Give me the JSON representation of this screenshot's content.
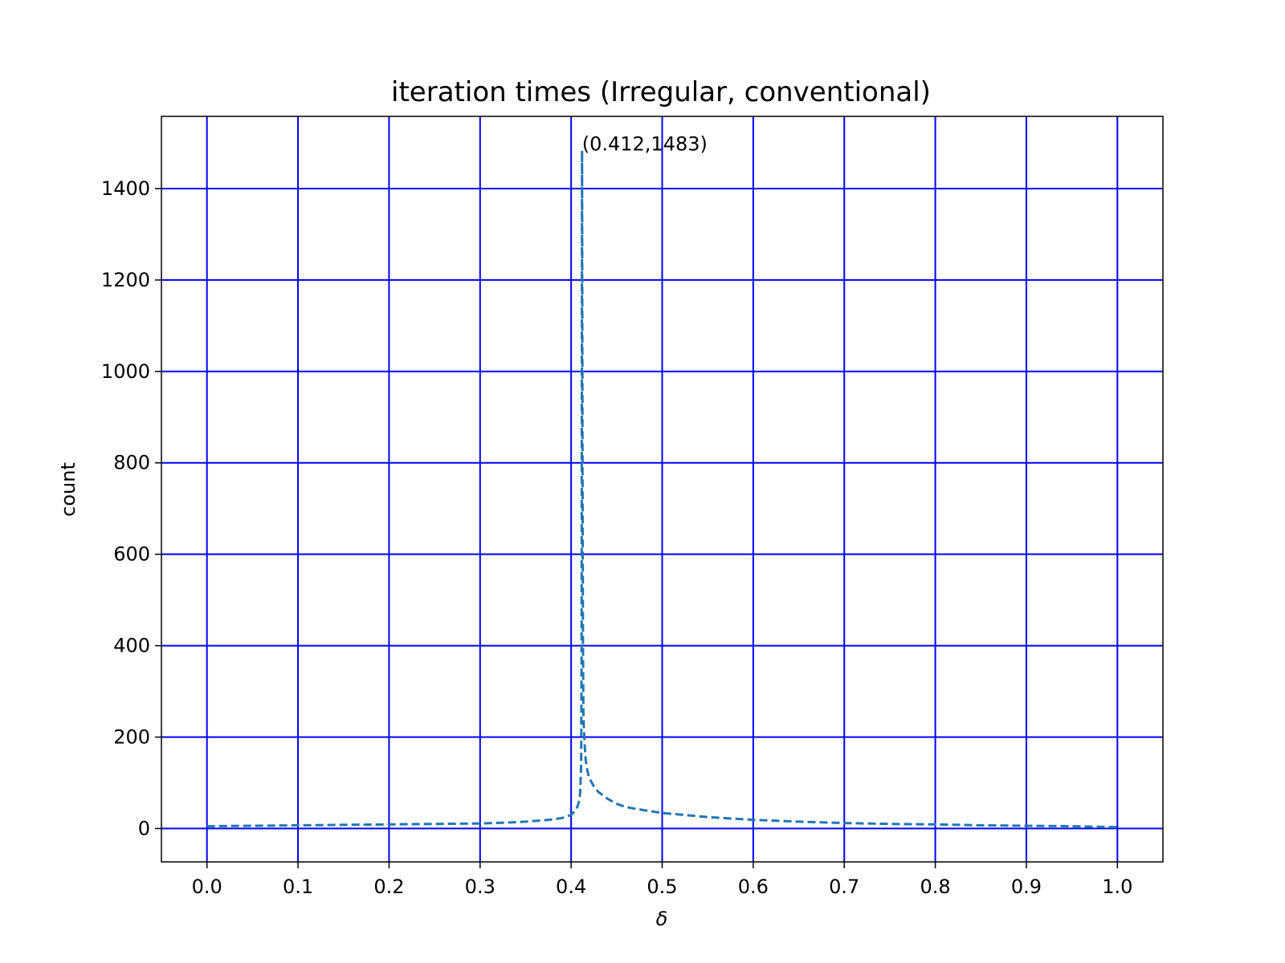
{
  "chart_data": {
    "type": "line",
    "title": "iteration times (Irregular, conventional)",
    "xlabel": "δ",
    "ylabel": "count",
    "xlim": [
      -0.05,
      1.05
    ],
    "ylim": [
      -73,
      1558
    ],
    "xticks": [
      0.0,
      0.1,
      0.2,
      0.3,
      0.4,
      0.5,
      0.6,
      0.7,
      0.8,
      0.9,
      1.0
    ],
    "xtick_labels": [
      "0.0",
      "0.1",
      "0.2",
      "0.3",
      "0.4",
      "0.5",
      "0.6",
      "0.7",
      "0.8",
      "0.9",
      "1.0"
    ],
    "yticks": [
      0,
      200,
      400,
      600,
      800,
      1000,
      1200,
      1400
    ],
    "ytick_labels": [
      "0",
      "200",
      "400",
      "600",
      "800",
      "1000",
      "1200",
      "1400"
    ],
    "grid": true,
    "grid_color": "#0000ff",
    "line_color": "#1f77b4",
    "line_style": "dashed",
    "series": [
      {
        "x": [
          0.0,
          0.05,
          0.1,
          0.15,
          0.2,
          0.25,
          0.3,
          0.33,
          0.35,
          0.37,
          0.38,
          0.39,
          0.395,
          0.4,
          0.404,
          0.407,
          0.409,
          0.41,
          0.411,
          0.4115,
          0.412,
          0.4125,
          0.413,
          0.4135,
          0.414,
          0.415,
          0.416,
          0.418,
          0.42,
          0.425,
          0.43,
          0.44,
          0.45,
          0.46,
          0.48,
          0.5,
          0.55,
          0.6,
          0.65,
          0.7,
          0.75,
          0.8,
          0.85,
          0.9,
          0.95,
          1.0
        ],
        "y": [
          5,
          6,
          7,
          8,
          9,
          10,
          11,
          13,
          15,
          18,
          20,
          23,
          26,
          30,
          38,
          48,
          62,
          80,
          140,
          400,
          1483,
          800,
          400,
          250,
          220,
          180,
          150,
          125,
          110,
          92,
          80,
          65,
          54,
          47,
          40,
          34,
          25,
          19,
          15,
          12,
          10,
          9,
          7,
          6,
          5,
          3
        ]
      }
    ],
    "annotations": [
      {
        "text": "(0.412,1483)",
        "x": 0.412,
        "y": 1483
      }
    ]
  }
}
